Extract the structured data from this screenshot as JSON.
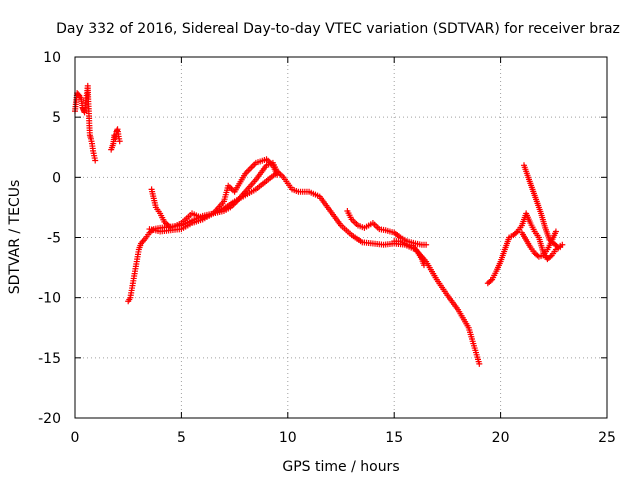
{
  "chart_data": {
    "type": "scatter",
    "title": "Day 332 of 2016, Sidereal Day-to-day VTEC variation (SDTVAR) for receiver braz",
    "xlabel": "GPS time / hours",
    "ylabel": "SDTVAR / TECUs",
    "xlim": [
      0,
      25
    ],
    "ylim": [
      -20,
      10
    ],
    "xticks": [
      0,
      5,
      10,
      15,
      20,
      25
    ],
    "yticks": [
      -20,
      -15,
      -10,
      -5,
      0,
      5,
      10
    ],
    "grid": true,
    "marker": "+",
    "color": "#ff0000",
    "series": [
      {
        "name": "trace-1",
        "points": [
          [
            0.0,
            5.5
          ],
          [
            0.1,
            7.0
          ],
          [
            0.2,
            6.8
          ],
          [
            0.3,
            6.5
          ],
          [
            0.35,
            5.8
          ],
          [
            0.4,
            5.6
          ],
          [
            0.45,
            5.4
          ]
        ]
      },
      {
        "name": "trace-2",
        "points": [
          [
            0.45,
            5.6
          ],
          [
            0.5,
            6.2
          ],
          [
            0.55,
            6.8
          ],
          [
            0.6,
            7.6
          ],
          [
            0.62,
            6.5
          ],
          [
            0.65,
            5.5
          ],
          [
            0.67,
            4.5
          ],
          [
            0.7,
            3.5
          ],
          [
            0.75,
            3.2
          ],
          [
            0.8,
            2.8
          ],
          [
            0.85,
            2.2
          ],
          [
            0.9,
            1.8
          ],
          [
            0.95,
            1.4
          ]
        ]
      },
      {
        "name": "trace-3",
        "points": [
          [
            1.7,
            2.3
          ],
          [
            1.8,
            2.8
          ],
          [
            1.85,
            3.5
          ],
          [
            1.9,
            3.2
          ],
          [
            1.95,
            3.8
          ],
          [
            2.0,
            4.0
          ],
          [
            2.05,
            3.4
          ],
          [
            2.1,
            3.0
          ]
        ]
      },
      {
        "name": "trace-4",
        "points": [
          [
            2.5,
            -10.3
          ],
          [
            2.6,
            -10.0
          ],
          [
            2.7,
            -9.0
          ],
          [
            2.8,
            -8.0
          ],
          [
            2.9,
            -7.0
          ],
          [
            3.0,
            -6.0
          ],
          [
            3.1,
            -5.5
          ],
          [
            3.3,
            -5.1
          ],
          [
            3.5,
            -4.6
          ],
          [
            3.7,
            -4.3
          ],
          [
            4.0,
            -4.2
          ],
          [
            4.5,
            -4.1
          ],
          [
            5.0,
            -4.0
          ],
          [
            5.5,
            -3.6
          ],
          [
            6.0,
            -3.2
          ],
          [
            6.5,
            -3.0
          ],
          [
            7.0,
            -2.8
          ],
          [
            7.3,
            -2.5
          ],
          [
            7.6,
            -2.0
          ],
          [
            8.0,
            -1.2
          ],
          [
            8.5,
            -0.2
          ],
          [
            9.0,
            1.0
          ],
          [
            9.3,
            1.2
          ],
          [
            9.5,
            0.5
          ],
          [
            9.8,
            0.0
          ],
          [
            10.0,
            -0.5
          ],
          [
            10.2,
            -1.0
          ],
          [
            10.5,
            -1.2
          ],
          [
            11.0,
            -1.2
          ],
          [
            11.5,
            -1.6
          ],
          [
            12.0,
            -2.8
          ],
          [
            12.5,
            -4.0
          ],
          [
            13.0,
            -4.8
          ],
          [
            13.5,
            -5.4
          ],
          [
            14.0,
            -5.5
          ],
          [
            14.5,
            -5.6
          ],
          [
            15.0,
            -5.5
          ],
          [
            15.5,
            -5.6
          ],
          [
            16.0,
            -6.0
          ],
          [
            16.5,
            -7.0
          ],
          [
            17.0,
            -8.5
          ],
          [
            17.5,
            -9.8
          ],
          [
            18.0,
            -11.0
          ],
          [
            18.5,
            -12.5
          ],
          [
            19.0,
            -15.5
          ]
        ]
      },
      {
        "name": "trace-5",
        "points": [
          [
            3.6,
            -1.0
          ],
          [
            3.8,
            -2.5
          ],
          [
            4.0,
            -3.0
          ],
          [
            4.2,
            -3.7
          ],
          [
            4.5,
            -4.2
          ],
          [
            5.0,
            -3.8
          ],
          [
            5.5,
            -3.0
          ],
          [
            6.0,
            -3.4
          ],
          [
            6.5,
            -3.0
          ],
          [
            7.0,
            -2.0
          ],
          [
            7.2,
            -0.7
          ],
          [
            7.5,
            -1.2
          ],
          [
            8.0,
            0.3
          ],
          [
            8.5,
            1.2
          ],
          [
            9.0,
            1.5
          ],
          [
            9.3,
            1.0
          ],
          [
            9.5,
            0.2
          ]
        ]
      },
      {
        "name": "trace-6",
        "points": [
          [
            3.5,
            -4.3
          ],
          [
            4.0,
            -4.5
          ],
          [
            4.5,
            -4.4
          ],
          [
            5.0,
            -4.3
          ],
          [
            5.5,
            -3.8
          ],
          [
            6.0,
            -3.5
          ],
          [
            6.5,
            -3.0
          ],
          [
            7.0,
            -2.6
          ],
          [
            7.5,
            -2.0
          ],
          [
            8.0,
            -1.5
          ],
          [
            8.5,
            -1.0
          ],
          [
            9.0,
            -0.3
          ],
          [
            9.5,
            0.4
          ]
        ]
      },
      {
        "name": "trace-7",
        "points": [
          [
            12.8,
            -2.8
          ],
          [
            13.0,
            -3.5
          ],
          [
            13.3,
            -4.0
          ],
          [
            13.6,
            -4.2
          ],
          [
            14.0,
            -3.8
          ],
          [
            14.3,
            -4.3
          ],
          [
            14.6,
            -4.4
          ],
          [
            15.0,
            -4.6
          ],
          [
            15.3,
            -5.0
          ],
          [
            15.6,
            -5.3
          ],
          [
            16.0,
            -5.5
          ],
          [
            16.3,
            -5.6
          ],
          [
            16.5,
            -5.6
          ]
        ]
      },
      {
        "name": "trace-8",
        "points": [
          [
            15.0,
            -5.3
          ],
          [
            15.3,
            -5.3
          ],
          [
            15.6,
            -5.6
          ],
          [
            15.9,
            -5.7
          ],
          [
            16.1,
            -6.2
          ],
          [
            16.3,
            -6.8
          ],
          [
            16.4,
            -7.3
          ]
        ]
      },
      {
        "name": "trace-9",
        "points": [
          [
            19.4,
            -8.8
          ],
          [
            19.6,
            -8.5
          ],
          [
            19.8,
            -7.8
          ],
          [
            20.0,
            -7.0
          ],
          [
            20.2,
            -6.0
          ],
          [
            20.4,
            -5.0
          ],
          [
            20.6,
            -4.8
          ],
          [
            20.8,
            -4.5
          ],
          [
            21.0,
            -4.0
          ],
          [
            21.2,
            -3.0
          ],
          [
            21.4,
            -3.8
          ],
          [
            21.6,
            -4.5
          ],
          [
            21.8,
            -5.0
          ],
          [
            22.0,
            -6.2
          ],
          [
            22.2,
            -6.8
          ],
          [
            22.4,
            -6.5
          ],
          [
            22.6,
            -6.0
          ],
          [
            22.8,
            -5.8
          ]
        ]
      },
      {
        "name": "trace-10",
        "points": [
          [
            21.1,
            1.0
          ],
          [
            21.3,
            0.0
          ],
          [
            21.5,
            -1.0
          ],
          [
            21.7,
            -2.0
          ],
          [
            21.9,
            -3.0
          ],
          [
            22.1,
            -4.2
          ],
          [
            22.3,
            -5.2
          ],
          [
            22.5,
            -5.5
          ],
          [
            22.7,
            -5.8
          ],
          [
            22.9,
            -5.6
          ]
        ]
      },
      {
        "name": "trace-11",
        "points": [
          [
            21.0,
            -4.6
          ],
          [
            21.2,
            -5.2
          ],
          [
            21.4,
            -5.8
          ],
          [
            21.6,
            -6.3
          ],
          [
            21.8,
            -6.6
          ],
          [
            22.0,
            -6.5
          ],
          [
            22.2,
            -6.0
          ],
          [
            22.4,
            -5.3
          ],
          [
            22.6,
            -4.5
          ]
        ]
      }
    ]
  }
}
